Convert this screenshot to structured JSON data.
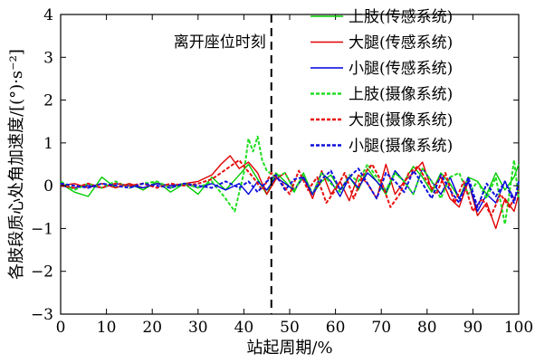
{
  "chart_data": {
    "type": "line",
    "xlabel": "站起周期/%",
    "ylabel": "各肢段质心处角加速度/[(°)·s⁻²]",
    "xlim": [
      0,
      100
    ],
    "ylim": [
      -3,
      4
    ],
    "xticks": [
      "0",
      "10",
      "20",
      "30",
      "40",
      "50",
      "60",
      "70",
      "80",
      "90",
      "100"
    ],
    "yticks": [
      "−3",
      "−2",
      "−1",
      "0",
      "1",
      "2",
      "3",
      "4"
    ],
    "grid": false,
    "legend_position": "top-right",
    "annotation": {
      "label": "离开座位时刻",
      "x": 46
    },
    "series": [
      {
        "name": "上肢(传感系统)",
        "color": "#00cc00",
        "style": "solid",
        "x": [
          0,
          3,
          6,
          9,
          12,
          15,
          18,
          21,
          24,
          27,
          30,
          33,
          36,
          39,
          41,
          43,
          45,
          47,
          49,
          51,
          53,
          55,
          57,
          59,
          61,
          63,
          65,
          67,
          69,
          71,
          73,
          75,
          77,
          79,
          81,
          83,
          85,
          87,
          89,
          91,
          93,
          95,
          97,
          99,
          100
        ],
        "y": [
          0.05,
          -0.15,
          -0.25,
          0.2,
          -0.05,
          0.05,
          -0.1,
          0.1,
          -0.15,
          0.05,
          -0.2,
          0.2,
          -0.1,
          0.25,
          0.5,
          0.15,
          -0.2,
          0.3,
          0.1,
          -0.15,
          0.3,
          -0.2,
          0.1,
          0.25,
          -0.1,
          0.2,
          -0.1,
          0.4,
          0.1,
          -0.2,
          0.3,
          0.1,
          0.45,
          0.2,
          -0.15,
          0.3,
          0.05,
          -0.3,
          0.2,
          0.1,
          -0.2,
          0.3,
          -0.1,
          0.2,
          0.5
        ]
      },
      {
        "name": "大腿(传感系统)",
        "color": "#e00000",
        "style": "solid",
        "x": [
          0,
          3,
          6,
          9,
          12,
          15,
          18,
          21,
          24,
          27,
          30,
          33,
          35,
          37,
          39,
          41,
          43,
          45,
          47,
          49,
          51,
          53,
          55,
          57,
          59,
          61,
          63,
          65,
          67,
          69,
          71,
          73,
          75,
          77,
          79,
          81,
          83,
          85,
          87,
          89,
          91,
          93,
          95,
          97,
          99,
          100
        ],
        "y": [
          0,
          0.05,
          -0.05,
          0.05,
          -0.05,
          0.05,
          -0.05,
          0.05,
          0,
          0.05,
          0.1,
          0.25,
          0.5,
          0.7,
          0.4,
          0.55,
          0.3,
          -0.2,
          0.15,
          0.3,
          -0.1,
          0.2,
          -0.3,
          0.35,
          -0.2,
          0.1,
          -0.35,
          0.25,
          0.05,
          -0.3,
          0.5,
          -0.2,
          0.1,
          0.3,
          0.55,
          -0.1,
          0.2,
          -0.3,
          -0.5,
          0.1,
          -0.7,
          -0.4,
          -1.0,
          -0.3,
          -0.6,
          -0.2
        ]
      },
      {
        "name": "小腿(传感系统)",
        "color": "#0000dd",
        "style": "solid",
        "x": [
          0,
          3,
          6,
          9,
          12,
          15,
          18,
          21,
          24,
          27,
          30,
          33,
          36,
          39,
          41,
          43,
          45,
          47,
          49,
          51,
          53,
          55,
          57,
          59,
          61,
          63,
          65,
          67,
          69,
          71,
          73,
          75,
          77,
          79,
          81,
          83,
          85,
          87,
          89,
          91,
          93,
          95,
          97,
          99,
          100
        ],
        "y": [
          0,
          -0.05,
          0,
          -0.05,
          0.05,
          0,
          -0.05,
          0.05,
          0,
          0.05,
          -0.05,
          0.05,
          -0.1,
          0.05,
          -0.2,
          0.1,
          -0.1,
          0.2,
          0.05,
          -0.1,
          0.2,
          -0.2,
          0.3,
          0.1,
          -0.25,
          0.2,
          -0.05,
          0.3,
          0.1,
          -0.15,
          0.35,
          0.1,
          -0.2,
          0.4,
          0.1,
          -0.2,
          0.2,
          -0.3,
          0.1,
          -0.6,
          -0.2,
          -0.4,
          0.1,
          -0.3,
          -0.1
        ]
      },
      {
        "name": "上肢(摄像系统)",
        "color": "#22dd22",
        "style": "dashed",
        "x": [
          0,
          3,
          6,
          9,
          12,
          15,
          18,
          21,
          24,
          27,
          30,
          33,
          36,
          38,
          40,
          41,
          42,
          43,
          44,
          45,
          47,
          49,
          51,
          53,
          55,
          57,
          59,
          61,
          63,
          65,
          67,
          69,
          71,
          73,
          75,
          77,
          79,
          81,
          83,
          85,
          87,
          89,
          91,
          93,
          95,
          97,
          99,
          100
        ],
        "y": [
          0.1,
          -0.1,
          0.05,
          -0.05,
          0.1,
          -0.05,
          0.05,
          0.1,
          -0.05,
          0.05,
          -0.05,
          0.1,
          -0.3,
          -0.6,
          0.3,
          1.1,
          0.8,
          1.15,
          0.6,
          0.35,
          0.2,
          0.3,
          -0.1,
          0.25,
          -0.2,
          0.3,
          0.05,
          -0.15,
          0.25,
          0.1,
          0.5,
          0.2,
          -0.1,
          0.3,
          0.1,
          -0.2,
          0.4,
          0.1,
          -0.3,
          0.2,
          0.3,
          -0.2,
          0.1,
          -0.3,
          0.2,
          -0.9,
          0.6,
          -0.3
        ]
      },
      {
        "name": "大腿(摄像系统)",
        "color": "#e81010",
        "style": "dashed",
        "x": [
          0,
          3,
          6,
          9,
          12,
          15,
          18,
          21,
          24,
          27,
          30,
          33,
          35,
          37,
          39,
          40,
          42,
          44,
          46,
          48,
          50,
          52,
          54,
          56,
          58,
          60,
          62,
          64,
          66,
          68,
          70,
          72,
          74,
          76,
          78,
          80,
          82,
          84,
          86,
          88,
          90,
          92,
          94,
          96,
          98,
          100
        ],
        "y": [
          0,
          -0.05,
          0.05,
          -0.05,
          0.05,
          0,
          0.05,
          -0.05,
          0.05,
          0,
          0.05,
          0.15,
          0.3,
          0.45,
          0.6,
          0.45,
          0.2,
          -0.1,
          0.3,
          0.1,
          -0.2,
          0.35,
          -0.1,
          0.2,
          -0.4,
          -0.1,
          0.3,
          -0.3,
          0.25,
          0.5,
          0.1,
          -0.5,
          -0.2,
          0.3,
          0.45,
          0.1,
          -0.2,
          0.3,
          -0.4,
          0.1,
          -0.6,
          -0.3,
          -0.7,
          -0.2,
          -0.5,
          -0.1
        ]
      },
      {
        "name": "小腿(摄像系统)",
        "color": "#1010dd",
        "style": "dashed",
        "x": [
          0,
          3,
          6,
          9,
          12,
          15,
          18,
          21,
          24,
          27,
          30,
          33,
          36,
          39,
          41,
          43,
          45,
          47,
          49,
          51,
          53,
          55,
          57,
          59,
          61,
          63,
          65,
          67,
          69,
          71,
          73,
          75,
          77,
          79,
          81,
          83,
          85,
          87,
          89,
          91,
          93,
          95,
          97,
          99,
          100
        ],
        "y": [
          0.05,
          0,
          -0.05,
          0.05,
          0,
          -0.05,
          0.05,
          0,
          -0.05,
          0.05,
          0,
          -0.05,
          0.1,
          -0.05,
          0.1,
          -0.15,
          0.1,
          0.25,
          -0.1,
          0.15,
          0.2,
          -0.2,
          0.15,
          0.35,
          -0.1,
          0.2,
          0.4,
          0.05,
          -0.3,
          0.3,
          0.1,
          -0.15,
          0.35,
          0.05,
          -0.3,
          0.25,
          -0.1,
          -0.4,
          0.2,
          -0.5,
          0.05,
          -0.25,
          0.1,
          -0.4,
          0.1
        ]
      }
    ]
  }
}
